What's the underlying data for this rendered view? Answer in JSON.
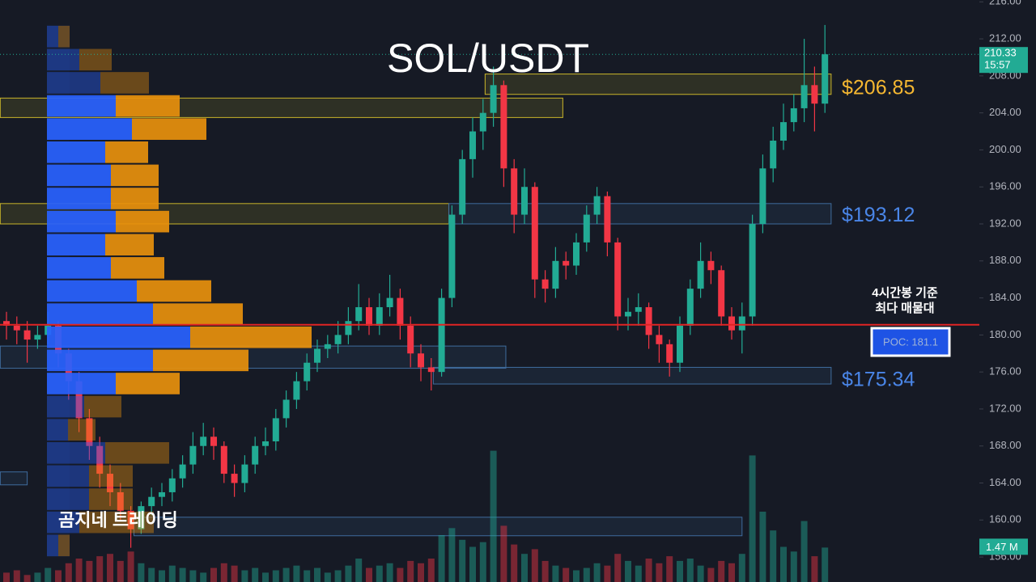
{
  "chart_data": {
    "type": "candlestick",
    "title": "SOL/USDT",
    "watermark": "곰지네 트레이딩",
    "open": [
      181.5,
      181,
      180.5,
      179.5,
      180,
      181,
      178,
      175,
      171,
      168,
      165,
      163,
      161,
      159,
      161.5,
      162.5,
      163,
      164.5,
      166,
      168,
      169,
      168,
      165,
      164,
      166,
      168,
      168.5,
      171,
      173,
      175,
      177,
      178.5,
      179,
      180,
      181.5,
      183,
      181,
      183,
      184,
      181,
      178,
      176.5,
      176,
      184,
      193,
      199,
      202,
      204,
      207,
      198,
      193,
      196,
      186,
      185,
      188,
      187.5,
      190,
      193,
      195,
      190,
      182,
      182.5,
      183,
      180,
      179,
      177,
      181,
      185,
      188,
      187,
      182,
      180.5,
      182,
      192,
      198,
      201,
      203,
      204.5,
      207,
      205
    ],
    "high": [
      182.5,
      182,
      181.5,
      181,
      182.5,
      181.5,
      178.5,
      176,
      172,
      169,
      166,
      164,
      161.5,
      162,
      163.5,
      164,
      165.5,
      167,
      169.5,
      170.5,
      170,
      168.5,
      166,
      167,
      169,
      170,
      172,
      174,
      176,
      178,
      179.5,
      180,
      181.5,
      183,
      185.5,
      184,
      184.5,
      186.5,
      185,
      182,
      179,
      177.5,
      185,
      194,
      200,
      203.5,
      205.5,
      209,
      207.5,
      199,
      198,
      196.5,
      187,
      189.5,
      189,
      191,
      194,
      196,
      195.5,
      190.5,
      184,
      184.5,
      183.5,
      181,
      179.5,
      182,
      186,
      190,
      189,
      187.5,
      183,
      183.5,
      193,
      199.5,
      202.5,
      205,
      206,
      212,
      209,
      213.5
    ],
    "low": [
      179.5,
      179,
      177,
      178.5,
      179,
      176.5,
      173,
      169.5,
      166.5,
      163.5,
      161.5,
      160,
      157,
      158.5,
      160.5,
      161.5,
      162,
      163.5,
      165,
      167,
      166.5,
      164,
      162.5,
      163,
      165,
      167,
      167.5,
      170,
      172,
      174,
      176,
      177.5,
      178,
      179,
      180.5,
      180,
      180,
      182,
      179.5,
      176.5,
      175,
      174,
      175.5,
      183,
      192,
      197,
      200,
      202.5,
      196,
      191,
      192,
      184,
      183.5,
      184,
      186,
      186.5,
      189,
      192,
      188.5,
      180.5,
      180.5,
      181,
      178.5,
      177,
      175.5,
      176,
      180,
      184,
      185.5,
      181,
      179.5,
      178,
      181,
      191,
      196.5,
      200,
      202,
      203,
      202,
      204
    ],
    "close": [
      181,
      180.5,
      179.5,
      180,
      181,
      178,
      175,
      171,
      168,
      165,
      163,
      161,
      159,
      161.5,
      162.5,
      163,
      164.5,
      166,
      168,
      169,
      168,
      165,
      164,
      166,
      168,
      168.5,
      171,
      173,
      175,
      177,
      178.5,
      179,
      180,
      181.5,
      183,
      181,
      183,
      184,
      181,
      178,
      176.5,
      176,
      184,
      193,
      199,
      202,
      204,
      207,
      198,
      193,
      196,
      186,
      185,
      188,
      187.5,
      190,
      193,
      195,
      190,
      182,
      182.5,
      183,
      180,
      179,
      177,
      181,
      185,
      188,
      187,
      182,
      180.5,
      182,
      192,
      198,
      201,
      203,
      204.5,
      207,
      205,
      210.33
    ],
    "volume": [
      0.4,
      0.5,
      0.3,
      0.4,
      0.6,
      0.5,
      0.8,
      1.0,
      0.9,
      1.1,
      1.2,
      0.9,
      1.3,
      0.8,
      0.6,
      0.5,
      0.7,
      0.6,
      0.5,
      0.4,
      0.6,
      0.8,
      0.7,
      0.5,
      0.6,
      0.4,
      0.5,
      0.6,
      0.7,
      0.5,
      0.6,
      0.4,
      0.5,
      0.7,
      1.0,
      0.6,
      0.7,
      0.8,
      0.6,
      0.9,
      0.8,
      1.0,
      2.0,
      2.3,
      1.8,
      1.5,
      1.7,
      5.6,
      2.4,
      1.6,
      1.2,
      1.4,
      0.9,
      0.7,
      0.6,
      0.5,
      0.6,
      0.8,
      0.7,
      1.2,
      0.9,
      0.7,
      1.0,
      0.8,
      1.1,
      0.9,
      1.0,
      0.7,
      0.6,
      0.9,
      0.8,
      1.2,
      5.4,
      3.0,
      2.2,
      1.5,
      1.3,
      2.6,
      1.1,
      1.47
    ],
    "last_volume_label": "1.47 M",
    "up_color": "#22ab94",
    "down_color": "#f23645",
    "ylim": [
      153.3,
      216.2
    ],
    "yticks": [
      {
        "value": 156,
        "label": "156.00"
      },
      {
        "value": 160,
        "label": "160.00"
      },
      {
        "value": 164,
        "label": "164.00"
      },
      {
        "value": 168,
        "label": "168.00"
      },
      {
        "value": 172,
        "label": "172.00"
      },
      {
        "value": 176,
        "label": "176.00"
      },
      {
        "value": 180,
        "label": "180.00"
      },
      {
        "value": 184,
        "label": "184.00"
      },
      {
        "value": 188,
        "label": "188.00"
      },
      {
        "value": 192,
        "label": "192.00"
      },
      {
        "value": 196,
        "label": "196.00"
      },
      {
        "value": 200,
        "label": "200.00"
      },
      {
        "value": 204,
        "label": "204.00"
      },
      {
        "value": 208,
        "label": "208.00"
      },
      {
        "value": 212,
        "label": "212.00"
      },
      {
        "value": 216,
        "label": "216.00"
      }
    ],
    "grid": false,
    "volume_profile": {
      "price_bins": [
        213.5,
        211,
        208.5,
        206,
        203.5,
        201,
        198.5,
        196,
        193.5,
        191,
        188.5,
        186,
        183.5,
        181,
        178.5,
        176,
        173.5,
        171,
        168.5,
        166,
        163.5,
        161,
        158.5,
        156
      ],
      "buy": [
        14,
        40,
        66,
        85,
        105,
        72,
        79,
        79,
        85,
        72,
        79,
        111,
        131,
        177,
        131,
        85,
        46,
        26,
        72,
        52,
        52,
        40,
        14
      ],
      "sell": [
        14,
        40,
        60,
        79,
        92,
        53,
        59,
        59,
        66,
        60,
        66,
        92,
        111,
        150,
        118,
        79,
        46,
        34,
        79,
        54,
        54,
        92,
        14
      ],
      "value_area": [
        173.5,
        206
      ],
      "buy_color": "#2962ff",
      "sell_color": "#e8900c"
    },
    "zones": [
      {
        "low": 206,
        "high": 208.2,
        "start": 46.2,
        "end": 79.6,
        "color": "#c9b52a"
      },
      {
        "low": 203.5,
        "high": 205.6,
        "start": -0.6,
        "end": 53.7,
        "color": "#c9b52a"
      },
      {
        "low": 192,
        "high": 194.2,
        "start": -0.6,
        "end": 42.7,
        "color": "#c9b52a"
      },
      {
        "low": 192,
        "high": 194.2,
        "start": 42.7,
        "end": 79.6,
        "color": "#3f6c9e"
      },
      {
        "low": 176.4,
        "high": 178.8,
        "start": -0.6,
        "end": 48.2,
        "color": "#3f6c9e"
      },
      {
        "low": 174.7,
        "high": 176.5,
        "start": 41.2,
        "end": 79.6,
        "color": "#3f6c9e"
      },
      {
        "low": 158.3,
        "high": 160.3,
        "start": 12.3,
        "end": 71,
        "color": "#3f6c9e"
      },
      {
        "low": 163.8,
        "high": 165.2,
        "start": -0.6,
        "end": 2,
        "color": "#3f6c9e"
      }
    ],
    "levels": [
      {
        "value": 206.85,
        "label": "$206.85",
        "color": "#f5b731"
      },
      {
        "value": 193.12,
        "label": "$193.12",
        "color": "#4a86e8"
      },
      {
        "value": 175.34,
        "label": "$175.34",
        "color": "#4a86e8"
      }
    ],
    "poc": {
      "value": 181.1,
      "label": "POC: 181.1",
      "note": [
        "4시간봉 기준",
        "최다 매물대"
      ],
      "color": "#e02424"
    },
    "last_time": "15:57"
  }
}
